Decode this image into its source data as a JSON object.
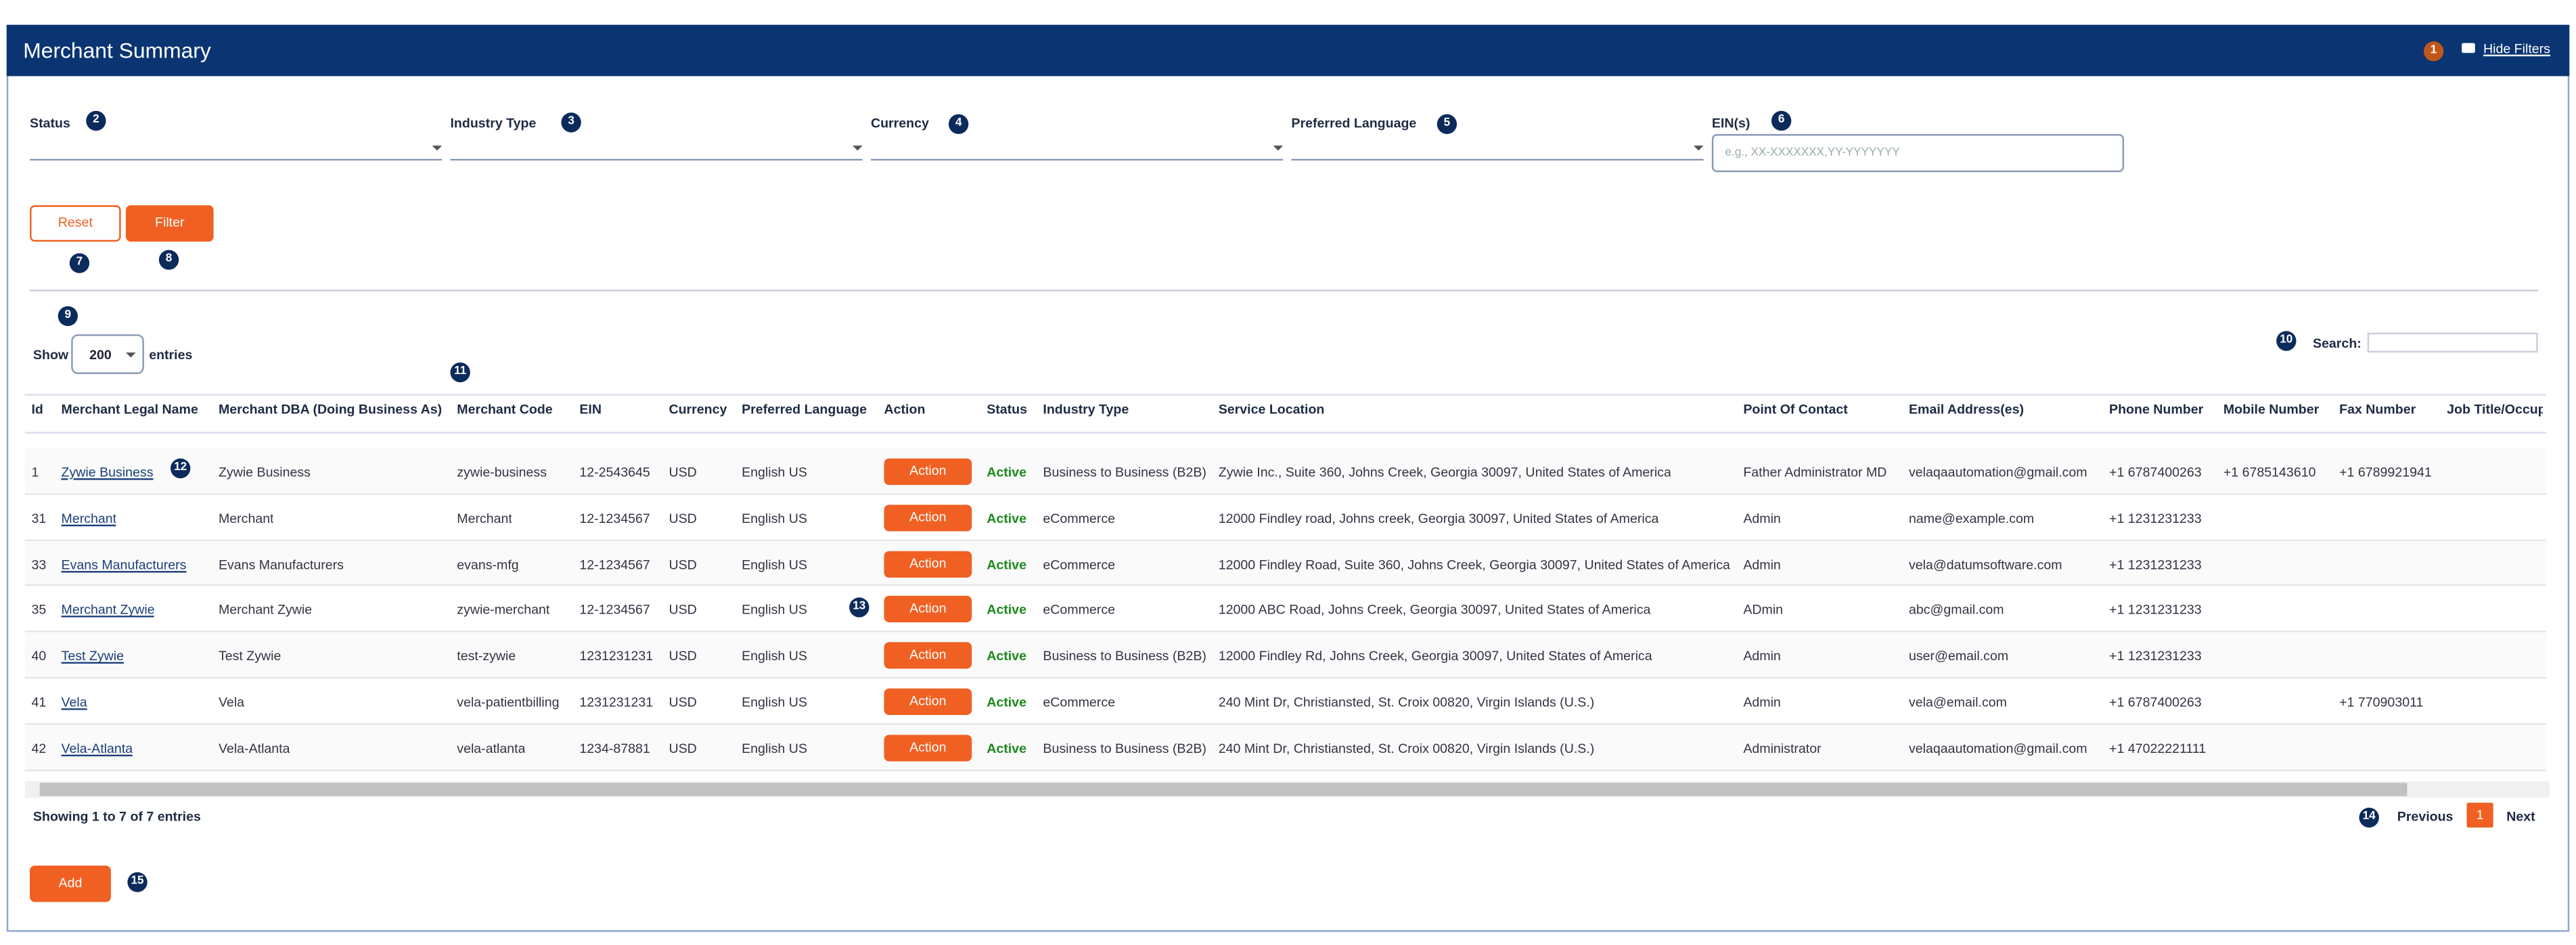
{
  "header": {
    "title": "Merchant Summary",
    "hide_filters": "Hide Filters"
  },
  "filters": [
    {
      "label": "Status"
    },
    {
      "label": "Industry Type"
    },
    {
      "label": "Currency"
    },
    {
      "label": "Preferred Language"
    },
    {
      "label": "EIN(s)"
    }
  ],
  "ein_placeholder": "e.g., XX-XXXXXXX,YY-YYYYYYY",
  "buttons": {
    "reset": "Reset",
    "filter": "Filter",
    "add": "Add"
  },
  "length": {
    "show": "Show",
    "value": "200",
    "entries": "entries"
  },
  "search_label": "Search:",
  "table": {
    "columns": [
      "Id",
      "Merchant Legal Name",
      "Merchant DBA (Doing Business As)",
      "Merchant Code",
      "EIN",
      "Currency",
      "Preferred Language",
      "Action",
      "Status",
      "Industry Type",
      "Service Location",
      "Point Of Contact",
      "Email Address(es)",
      "Phone Number",
      "Mobile Number",
      "Fax Number",
      "Job Title/Occupa"
    ],
    "rows": [
      [
        1,
        "Zywie Business",
        "Zywie Business",
        "zywie-business",
        "12-2543645",
        "USD",
        "English US",
        "Action",
        "Active",
        "Business to Business (B2B)",
        "Zywie Inc., Suite 360, Johns Creek, Georgia 30097, United States of America",
        "Father Administrator MD",
        "velaqaautomation@gmail.com",
        "+1 6787400263",
        "+1 6785143610",
        "+1 6789921941",
        null
      ],
      [
        31,
        "Merchant",
        "Merchant",
        "Merchant",
        "12-1234567",
        "USD",
        "English US",
        "Action",
        "Active",
        "eCommerce",
        "12000 Findley road, Johns creek, Georgia 30097, United States of America",
        "Admin",
        "name@example.com",
        "+1 1231231233",
        null,
        null,
        null
      ],
      [
        33,
        "Evans Manufacturers",
        "Evans Manufacturers",
        "evans-mfg",
        "12-1234567",
        "USD",
        "English US",
        "Action",
        "Active",
        "eCommerce",
        "12000 Findley Road, Suite 360, Johns Creek, Georgia 30097, United States of America",
        "Admin",
        "vela@datumsoftware.com",
        "+1 1231231233",
        null,
        null,
        null
      ],
      [
        35,
        "Merchant Zywie",
        "Merchant Zywie",
        "zywie-merchant",
        "12-1234567",
        "USD",
        "English US",
        "Action",
        "Active",
        "eCommerce",
        "12000 ABC Road, Johns Creek, Georgia 30097, United States of America",
        "ADmin",
        "abc@gmail.com",
        "+1 1231231233",
        null,
        null,
        null
      ],
      [
        40,
        "Test Zywie",
        "Test Zywie",
        "test-zywie",
        "1231231231",
        "USD",
        "English US",
        "Action",
        "Active",
        "Business to Business (B2B)",
        "12000 Findley Rd, Johns Creek, Georgia 30097, United States of America",
        "Admin",
        "user@email.com",
        "+1 1231231233",
        null,
        null,
        null
      ],
      [
        41,
        "Vela",
        "Vela",
        "vela-patientbilling",
        "1231231231",
        "USD",
        "English US",
        "Action",
        "Active",
        "eCommerce",
        "240 Mint Dr, Christiansted, St. Croix 00820, Virgin Islands (U.S.)",
        "Admin",
        "vela@email.com",
        "+1 6787400263",
        null,
        "+1 770903011",
        null
      ],
      [
        42,
        "Vela-Atlanta",
        "Vela-Atlanta",
        "vela-atlanta",
        "1234-87881",
        "USD",
        "English US",
        "Action",
        "Active",
        "Business to Business (B2B)",
        "240 Mint Dr, Christiansted, St. Croix 00820, Virgin Islands (U.S.)",
        "Administrator",
        "velaqaautomation@gmail.com",
        "+1 47022221111",
        null,
        null,
        null
      ]
    ]
  },
  "footer": {
    "info": "Showing 1 to 7 of 7 entries",
    "previous": "Previous",
    "page": "1",
    "next": "Next"
  },
  "badges": [
    "1",
    "2",
    "3",
    "4",
    "5",
    "6",
    "7",
    "8",
    "9",
    "10",
    "11",
    "12",
    "13",
    "14",
    "15"
  ]
}
